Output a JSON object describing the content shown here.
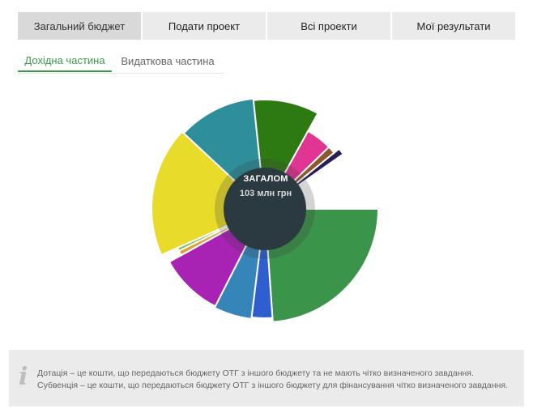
{
  "tabs": [
    {
      "label": "Загальний бюджет",
      "active": true
    },
    {
      "label": "Подати проект",
      "active": false
    },
    {
      "label": "Всі проекти",
      "active": false
    },
    {
      "label": "Мої результати",
      "active": false
    }
  ],
  "subtabs": [
    {
      "label": "Дохідна частина",
      "active": true
    },
    {
      "label": "Видаткова частина",
      "active": false
    }
  ],
  "center": {
    "title": "ЗАГАЛОМ",
    "value": "103 млн грн"
  },
  "note": {
    "line1": "Дотація – це кошти, що передаються бюджету ОТГ з іншого бюджету та не мають чітко визначеного завдання.",
    "line2": "Субвенція – це кошти, що передаються бюджету ОТГ з іншого бюджету для фінансування чітко визначеного завдання."
  },
  "chart_data": {
    "type": "pie",
    "variant": "rose",
    "center_color": "#2b3a40",
    "slices": [
      {
        "color": "#3a944a",
        "angle": 86,
        "radius": 140
      },
      {
        "color": "#2f5fcf",
        "angle": 11,
        "radius": 135
      },
      {
        "color": "#3585b8",
        "angle": 20,
        "radius": 137
      },
      {
        "color": "#a823b4",
        "angle": 34,
        "radius": 135
      },
      {
        "color": "#d9a33b",
        "angle": 3,
        "radius": 118
      },
      {
        "color": "#6fc04a",
        "angle": 2,
        "radius": 118
      },
      {
        "color": "#e8db2a",
        "angle": 67,
        "radius": 140
      },
      {
        "color": "#2e8f9b",
        "angle": 41,
        "radius": 137
      },
      {
        "color": "#2e7a12",
        "angle": 35,
        "radius": 135
      },
      {
        "color": "#e03593",
        "angle": 17,
        "radius": 110
      },
      {
        "color": "#8c5a2a",
        "angle": 5,
        "radius": 110
      },
      {
        "color": "#2a1e5a",
        "angle": 4,
        "radius": 118
      }
    ]
  }
}
